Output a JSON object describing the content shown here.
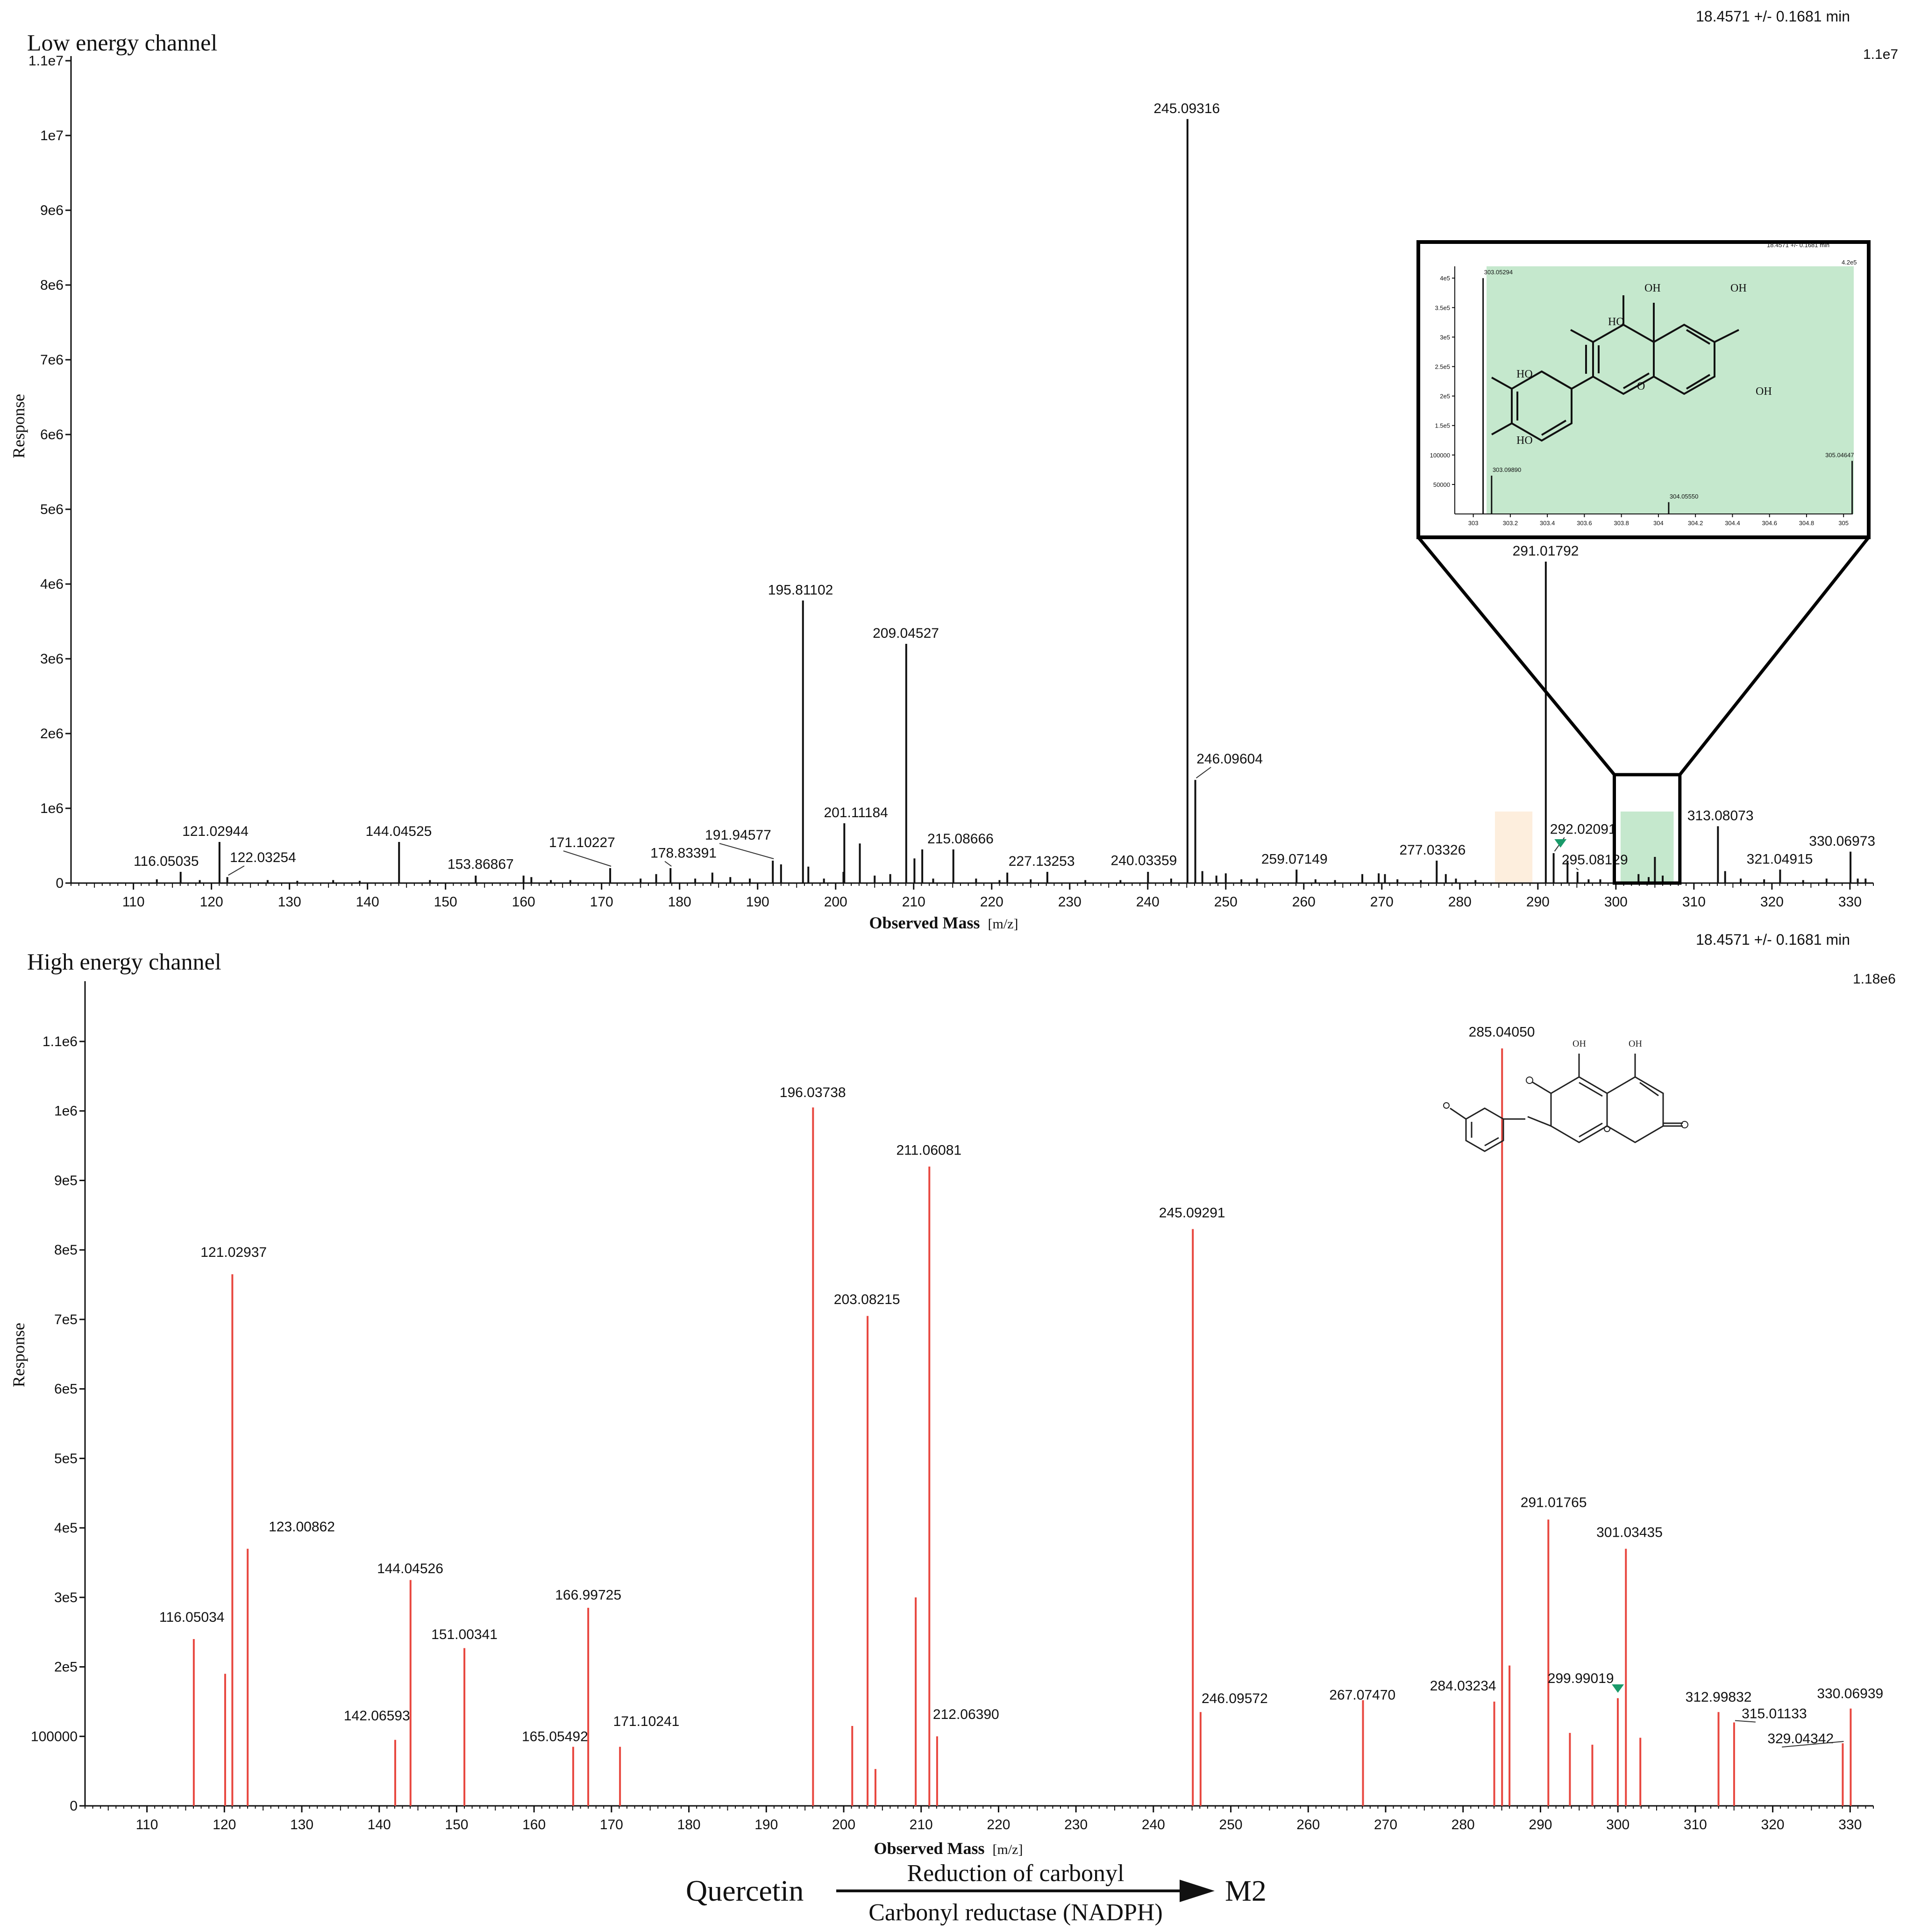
{
  "charts": {
    "low": {
      "channel_title": "Low energy channel",
      "rt_label": "18.4571 +/- 0.1681 min",
      "max_label": "1.1e7",
      "ylabel": "Response",
      "xlabel_main": "Observed Mass",
      "xlabel_unit": "[m/z]"
    },
    "high": {
      "channel_title": "High energy channel",
      "rt_label": "18.4571 +/- 0.1681 min",
      "max_label": "1.18e6",
      "ylabel": "Response",
      "xlabel_main": "Observed Mass",
      "xlabel_unit": "[m/z]"
    },
    "inset": {
      "rt_label": "18.4571 +/- 0.1681 min",
      "max_label": "4.2e5"
    }
  },
  "scheme": {
    "substrate": "Quercetin",
    "reaction": "Reduction of carbonyl",
    "enzyme": "Carbonyl reductase (NADPH)",
    "product": "M2"
  },
  "structure_labels": {
    "inset_oh": [
      "OH",
      "OH",
      "HO",
      "OH",
      "HO",
      "HO"
    ],
    "inset_o": "O",
    "high_oh": [
      "OH",
      "OH"
    ]
  },
  "chart_data": [
    {
      "type": "bar",
      "title": "Low energy channel",
      "xlabel": "Observed Mass [m/z]",
      "ylabel": "Response",
      "xlim": [
        102,
        333
      ],
      "ylim": [
        0,
        11000000
      ],
      "xticks": [
        110,
        120,
        130,
        140,
        150,
        160,
        170,
        180,
        190,
        200,
        210,
        220,
        230,
        240,
        250,
        260,
        270,
        280,
        290,
        300,
        310,
        320,
        330
      ],
      "yticks": [
        {
          "value": 0,
          "label": "0"
        },
        {
          "value": 1000000,
          "label": "1e6"
        },
        {
          "value": 2000000,
          "label": "2e6"
        },
        {
          "value": 3000000,
          "label": "3e6"
        },
        {
          "value": 4000000,
          "label": "4e6"
        },
        {
          "value": 5000000,
          "label": "5e6"
        },
        {
          "value": 6000000,
          "label": "6e6"
        },
        {
          "value": 7000000,
          "label": "7e6"
        },
        {
          "value": 8000000,
          "label": "8e6"
        },
        {
          "value": 9000000,
          "label": "9e6"
        },
        {
          "value": 10000000,
          "label": "1e7"
        },
        {
          "value": 11000000,
          "label": "1.1e7"
        }
      ],
      "highlights": [
        {
          "x_from": 284.5,
          "x_to": 289.3,
          "color": "#fdeedd"
        },
        {
          "x_from": 300.6,
          "x_to": 307.4,
          "color": "#c5e8cd"
        }
      ],
      "zoom_box": {
        "x_from": 299.8,
        "x_to": 308.2,
        "y_top": 1450000
      },
      "marker": {
        "x": 292.9,
        "y": 450000,
        "color": "#1a9a6a"
      },
      "peaks": [
        {
          "x": 116.05035,
          "y": 150000,
          "label": "116.05035",
          "lx": 114.2,
          "ly": 230000
        },
        {
          "x": 121.02944,
          "y": 550000,
          "label": "121.02944",
          "lx": 120.5,
          "ly": 630000
        },
        {
          "x": 122.03254,
          "y": 80000,
          "label": "122.03254",
          "lx": 126.6,
          "ly": 280000,
          "leader": true
        },
        {
          "x": 144.04525,
          "y": 550000,
          "label": "144.04525",
          "lx": 144.0,
          "ly": 630000
        },
        {
          "x": 153.86867,
          "y": 100000,
          "label": "153.86867",
          "lx": 154.5,
          "ly": 190000
        },
        {
          "x": 171.10227,
          "y": 200000,
          "label": "171.10227",
          "lx": 167.5,
          "ly": 480000,
          "leader": true
        },
        {
          "x": 178.83391,
          "y": 200000,
          "label": "178.83391",
          "lx": 180.5,
          "ly": 340000,
          "leader": true
        },
        {
          "x": 191.94577,
          "y": 300000,
          "label": "191.94577",
          "lx": 187.5,
          "ly": 580000,
          "leader": true
        },
        {
          "x": 195.81102,
          "y": 3780000,
          "label": "195.81102",
          "lx": 195.5,
          "ly": 3860000
        },
        {
          "x": 201.11184,
          "y": 800000,
          "label": "201.11184",
          "lx": 202.6,
          "ly": 880000
        },
        {
          "x": 209.04527,
          "y": 3200000,
          "label": "209.04527",
          "lx": 209.0,
          "ly": 3280000
        },
        {
          "x": 215.08666,
          "y": 450000,
          "label": "215.08666",
          "lx": 216.0,
          "ly": 530000
        },
        {
          "x": 227.13253,
          "y": 150000,
          "label": "227.13253",
          "lx": 226.4,
          "ly": 230000
        },
        {
          "x": 240.03359,
          "y": 150000,
          "label": "240.03359",
          "lx": 239.5,
          "ly": 240000
        },
        {
          "x": 245.09316,
          "y": 10220000,
          "label": "245.09316",
          "lx": 245.0,
          "ly": 10300000
        },
        {
          "x": 246.09604,
          "y": 1380000,
          "label": "246.09604",
          "lx": 250.5,
          "ly": 1600000,
          "leader": true
        },
        {
          "x": 259.07149,
          "y": 180000,
          "label": "259.07149",
          "lx": 258.8,
          "ly": 260000
        },
        {
          "x": 277.03326,
          "y": 300000,
          "label": "277.03326",
          "lx": 276.5,
          "ly": 380000
        },
        {
          "x": 291.01792,
          "y": 4300000,
          "label": "291.01792",
          "lx": 291.0,
          "ly": 4380000
        },
        {
          "x": 292.02091,
          "y": 400000,
          "label": "292.02091",
          "lx": 295.8,
          "ly": 660000,
          "leader": true
        },
        {
          "x": 295.08129,
          "y": 150000,
          "label": "295.08129",
          "lx": 297.3,
          "ly": 250000,
          "leader": true
        },
        {
          "x": 313.08073,
          "y": 760000,
          "label": "313.08073",
          "lx": 313.4,
          "ly": 840000
        },
        {
          "x": 321.04915,
          "y": 180000,
          "label": "321.04915",
          "lx": 321.0,
          "ly": 260000
        },
        {
          "x": 330.06973,
          "y": 420000,
          "label": "330.06973",
          "lx": 329.0,
          "ly": 500000
        }
      ],
      "minor_peaks": [
        {
          "x": 113.0,
          "y": 50000
        },
        {
          "x": 118.5,
          "y": 40000
        },
        {
          "x": 127.2,
          "y": 40000
        },
        {
          "x": 131.0,
          "y": 30000
        },
        {
          "x": 135.6,
          "y": 40000
        },
        {
          "x": 139.0,
          "y": 30000
        },
        {
          "x": 148.0,
          "y": 40000
        },
        {
          "x": 160.0,
          "y": 100000
        },
        {
          "x": 161.0,
          "y": 80000
        },
        {
          "x": 163.5,
          "y": 40000
        },
        {
          "x": 166.0,
          "y": 40000
        },
        {
          "x": 175.0,
          "y": 60000
        },
        {
          "x": 177.0,
          "y": 120000
        },
        {
          "x": 182.0,
          "y": 60000
        },
        {
          "x": 184.2,
          "y": 140000
        },
        {
          "x": 186.5,
          "y": 80000
        },
        {
          "x": 189.0,
          "y": 60000
        },
        {
          "x": 193.0,
          "y": 250000
        },
        {
          "x": 196.5,
          "y": 220000
        },
        {
          "x": 198.5,
          "y": 60000
        },
        {
          "x": 201.0,
          "y": 150000
        },
        {
          "x": 203.1,
          "y": 530000
        },
        {
          "x": 205.0,
          "y": 100000
        },
        {
          "x": 207.0,
          "y": 120000
        },
        {
          "x": 210.1,
          "y": 330000
        },
        {
          "x": 211.1,
          "y": 450000
        },
        {
          "x": 212.5,
          "y": 60000
        },
        {
          "x": 218.0,
          "y": 60000
        },
        {
          "x": 221.0,
          "y": 40000
        },
        {
          "x": 222.0,
          "y": 140000
        },
        {
          "x": 225.0,
          "y": 50000
        },
        {
          "x": 232.0,
          "y": 40000
        },
        {
          "x": 236.5,
          "y": 40000
        },
        {
          "x": 243.0,
          "y": 60000
        },
        {
          "x": 247.0,
          "y": 160000
        },
        {
          "x": 248.8,
          "y": 100000
        },
        {
          "x": 250.0,
          "y": 130000
        },
        {
          "x": 252.0,
          "y": 50000
        },
        {
          "x": 254.0,
          "y": 60000
        },
        {
          "x": 261.5,
          "y": 50000
        },
        {
          "x": 264.0,
          "y": 40000
        },
        {
          "x": 267.5,
          "y": 120000
        },
        {
          "x": 269.6,
          "y": 130000
        },
        {
          "x": 270.4,
          "y": 120000
        },
        {
          "x": 272.0,
          "y": 50000
        },
        {
          "x": 275.0,
          "y": 40000
        },
        {
          "x": 278.2,
          "y": 120000
        },
        {
          "x": 279.5,
          "y": 60000
        },
        {
          "x": 282.0,
          "y": 40000
        },
        {
          "x": 293.8,
          "y": 300000
        },
        {
          "x": 296.5,
          "y": 50000
        },
        {
          "x": 298.0,
          "y": 50000
        },
        {
          "x": 302.9,
          "y": 120000
        },
        {
          "x": 304.2,
          "y": 80000
        },
        {
          "x": 305.0,
          "y": 350000
        },
        {
          "x": 306.0,
          "y": 100000
        },
        {
          "x": 314.0,
          "y": 160000
        },
        {
          "x": 316.0,
          "y": 60000
        },
        {
          "x": 319.0,
          "y": 50000
        },
        {
          "x": 324.0,
          "y": 40000
        },
        {
          "x": 327.0,
          "y": 60000
        },
        {
          "x": 331.0,
          "y": 60000
        },
        {
          "x": 332.0,
          "y": 60000
        }
      ]
    },
    {
      "type": "bar",
      "title": "High energy channel",
      "xlabel": "Observed Mass [m/z]",
      "ylabel": "Response",
      "xlim": [
        102,
        333
      ],
      "ylim": [
        0,
        1180000
      ],
      "xticks": [
        110,
        120,
        130,
        140,
        150,
        160,
        170,
        180,
        190,
        200,
        210,
        220,
        230,
        240,
        250,
        260,
        270,
        280,
        290,
        300,
        310,
        320,
        330
      ],
      "yticks": [
        {
          "value": 0,
          "label": "0"
        },
        {
          "value": 100000,
          "label": "100000"
        },
        {
          "value": 200000,
          "label": "2e5"
        },
        {
          "value": 300000,
          "label": "3e5"
        },
        {
          "value": 400000,
          "label": "4e5"
        },
        {
          "value": 500000,
          "label": "5e5"
        },
        {
          "value": 600000,
          "label": "6e5"
        },
        {
          "value": 700000,
          "label": "7e5"
        },
        {
          "value": 800000,
          "label": "8e5"
        },
        {
          "value": 900000,
          "label": "9e5"
        },
        {
          "value": 1000000,
          "label": "1e6"
        },
        {
          "value": 1100000,
          "label": "1.1e6"
        }
      ],
      "marker": {
        "x": 300.0,
        "y": 160000,
        "color": "#1a9a6a"
      },
      "peaks": [
        {
          "x": 116.05034,
          "y": 240000,
          "label": "116.05034",
          "lx": 115.8,
          "ly": 265000
        },
        {
          "x": 121.02937,
          "y": 765000,
          "label": "121.02937",
          "lx": 121.2,
          "ly": 790000
        },
        {
          "x": 123.00862,
          "y": 370000,
          "label": "123.00862",
          "lx": 130.0,
          "ly": 395000
        },
        {
          "x": 144.04526,
          "y": 325000,
          "label": "144.04526",
          "lx": 144.0,
          "ly": 335000
        },
        {
          "x": 151.00341,
          "y": 227000,
          "label": "151.00341",
          "lx": 151.0,
          "ly": 240000
        },
        {
          "x": 142.06593,
          "y": 95000,
          "label": "142.06593",
          "lx": 139.7,
          "ly": 123000
        },
        {
          "x": 165.05492,
          "y": 85000,
          "label": "165.05492",
          "lx": 162.7,
          "ly": 93000
        },
        {
          "x": 166.99725,
          "y": 285000,
          "label": "166.99725",
          "lx": 167.0,
          "ly": 297000
        },
        {
          "x": 171.10241,
          "y": 85000,
          "label": "171.10241",
          "lx": 174.5,
          "ly": 115000
        },
        {
          "x": 196.03738,
          "y": 1005000,
          "label": "196.03738",
          "lx": 196.0,
          "ly": 1020000
        },
        {
          "x": 203.08215,
          "y": 705000,
          "label": "203.08215",
          "lx": 203.0,
          "ly": 722000
        },
        {
          "x": 211.06081,
          "y": 920000,
          "label": "211.06081",
          "lx": 211.0,
          "ly": 937000
        },
        {
          "x": 212.0639,
          "y": 100000,
          "label": "212.06390",
          "lx": 215.8,
          "ly": 125000
        },
        {
          "x": 245.09291,
          "y": 830000,
          "label": "245.09291",
          "lx": 245.0,
          "ly": 847000
        },
        {
          "x": 246.09572,
          "y": 135000,
          "label": "246.09572",
          "lx": 250.5,
          "ly": 148000
        },
        {
          "x": 267.0747,
          "y": 152000,
          "label": "267.07470",
          "lx": 267.0,
          "ly": 153000
        },
        {
          "x": 284.03234,
          "y": 150000,
          "label": "284.03234",
          "lx": 280.0,
          "ly": 166000
        },
        {
          "x": 285.0405,
          "y": 1090000,
          "label": "285.04050",
          "lx": 285.0,
          "ly": 1107000
        },
        {
          "x": 291.01765,
          "y": 412000,
          "label": "291.01765",
          "lx": 291.7,
          "ly": 430000
        },
        {
          "x": 301.03435,
          "y": 370000,
          "label": "301.03435",
          "lx": 301.5,
          "ly": 387000
        },
        {
          "x": 299.99019,
          "y": 155000,
          "label": "299.99019",
          "lx": 295.2,
          "ly": 177000
        },
        {
          "x": 312.99832,
          "y": 135000,
          "label": "312.99832",
          "lx": 313.0,
          "ly": 150000
        },
        {
          "x": 315.01133,
          "y": 120000,
          "label": "315.01133",
          "lx": 320.2,
          "ly": 126000,
          "leader": true
        },
        {
          "x": 329.04342,
          "y": 90000,
          "label": "329.04342",
          "lx": 323.6,
          "ly": 90000,
          "leader": true
        },
        {
          "x": 330.06939,
          "y": 140000,
          "label": "330.06939",
          "lx": 330.0,
          "ly": 155000
        }
      ],
      "minor_peaks": [
        {
          "x": 120.1,
          "y": 190000
        },
        {
          "x": 201.1,
          "y": 115000
        },
        {
          "x": 204.1,
          "y": 53000
        },
        {
          "x": 209.3,
          "y": 300000
        },
        {
          "x": 286.0,
          "y": 202000
        },
        {
          "x": 293.8,
          "y": 105000
        },
        {
          "x": 296.7,
          "y": 88000
        },
        {
          "x": 302.9,
          "y": 98000
        }
      ]
    },
    {
      "type": "bar",
      "title": "",
      "xlim": [
        302.9,
        305.05
      ],
      "ylim": [
        0,
        420000
      ],
      "xticks": [
        303,
        303.2,
        303.4,
        303.6,
        303.8,
        304,
        304.2,
        304.4,
        304.6,
        304.8,
        305
      ],
      "yticks": [
        {
          "value": 50000,
          "label": "50000"
        },
        {
          "value": 100000,
          "label": "100000"
        },
        {
          "value": 150000,
          "label": "1.5e5"
        },
        {
          "value": 200000,
          "label": "2e5"
        },
        {
          "value": 250000,
          "label": "2.5e5"
        },
        {
          "value": 300000,
          "label": "3e5"
        },
        {
          "value": 350000,
          "label": "3.5e5"
        },
        {
          "value": 400000,
          "label": "4e5"
        }
      ],
      "peaks": [
        {
          "x": 303.05294,
          "y": 400000,
          "label": "303.05294"
        },
        {
          "x": 303.0989,
          "y": 65000,
          "label": "303.09890"
        },
        {
          "x": 304.0555,
          "y": 20000,
          "label": "304.05550"
        },
        {
          "x": 305.04647,
          "y": 90000,
          "label": "305.04647"
        }
      ]
    }
  ]
}
